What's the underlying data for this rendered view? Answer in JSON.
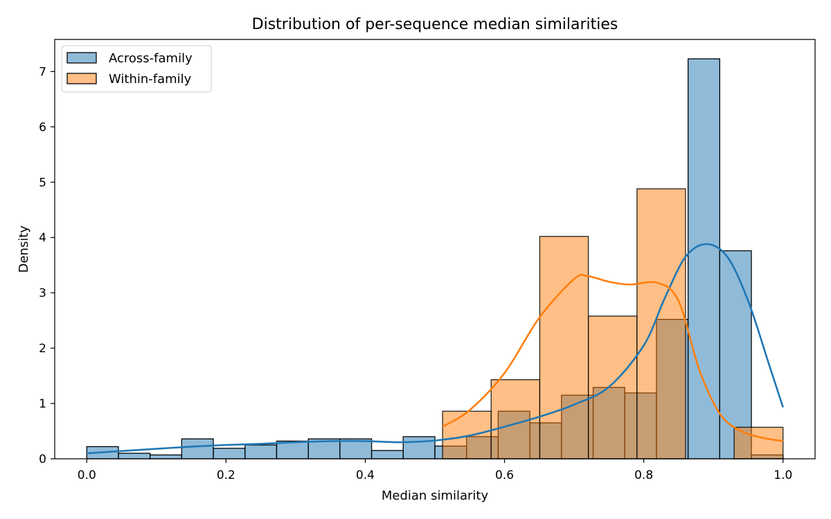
{
  "chart_data": {
    "type": "histogram",
    "title": "Distribution of per-sequence median similarities",
    "xlabel": "Median similarity",
    "ylabel": "Density",
    "xlim": [
      -0.046,
      1.046
    ],
    "ylim": [
      0,
      7.58
    ],
    "xticks": [
      0.0,
      0.2,
      0.4,
      0.6,
      0.8,
      1.0
    ],
    "xtick_labels": [
      "0.0",
      "0.2",
      "0.4",
      "0.6",
      "0.8",
      "1.0"
    ],
    "yticks": [
      0,
      1,
      2,
      3,
      4,
      5,
      6,
      7
    ],
    "ytick_labels": [
      "0",
      "1",
      "2",
      "3",
      "4",
      "5",
      "6",
      "7"
    ],
    "grid": false,
    "legend_position": "upper-left",
    "series": [
      {
        "name": "Across-family",
        "color": "#1f77b4",
        "fill": "#8fb9db",
        "bin_edges": [
          0.0,
          0.0455,
          0.0909,
          0.1364,
          0.1818,
          0.2273,
          0.2727,
          0.3182,
          0.3636,
          0.4091,
          0.4545,
          0.5,
          0.5455,
          0.5909,
          0.6364,
          0.6818,
          0.7273,
          0.7727,
          0.8182,
          0.8636,
          0.9091,
          0.9545,
          1.0
        ],
        "values": [
          0.22,
          0.1,
          0.07,
          0.36,
          0.19,
          0.25,
          0.32,
          0.36,
          0.36,
          0.15,
          0.4,
          0.23,
          0.4,
          0.86,
          0.65,
          1.15,
          1.29,
          1.19,
          2.52,
          7.23,
          3.76,
          0.07
        ],
        "kde": {
          "x": [
            0.0,
            0.05,
            0.1,
            0.15,
            0.2,
            0.25,
            0.3,
            0.35,
            0.4,
            0.45,
            0.5,
            0.55,
            0.6,
            0.65,
            0.7,
            0.75,
            0.8,
            0.83,
            0.86,
            0.89,
            0.92,
            0.95,
            0.98,
            1.0
          ],
          "y": [
            0.1,
            0.14,
            0.18,
            0.22,
            0.25,
            0.27,
            0.3,
            0.32,
            0.32,
            0.3,
            0.33,
            0.42,
            0.58,
            0.76,
            0.98,
            1.3,
            2.05,
            2.9,
            3.65,
            3.88,
            3.65,
            2.85,
            1.7,
            0.93
          ]
        }
      },
      {
        "name": "Within-family",
        "color": "#ff7f0e",
        "fill": "#ffbf86",
        "bin_edges": [
          0.511,
          0.5808,
          0.6506,
          0.7204,
          0.7902,
          0.86,
          0.9298,
          1.0
        ],
        "values": [
          0.86,
          1.43,
          4.02,
          2.58,
          4.88,
          0.0,
          0.57
        ],
        "kde": {
          "x": [
            0.511,
            0.55,
            0.6,
            0.65,
            0.7,
            0.72,
            0.75,
            0.78,
            0.82,
            0.85,
            0.88,
            0.91,
            0.94,
            0.97,
            1.0
          ],
          "y": [
            0.58,
            0.88,
            1.55,
            2.55,
            3.25,
            3.3,
            3.2,
            3.15,
            3.18,
            2.85,
            1.6,
            0.8,
            0.5,
            0.38,
            0.32
          ]
        }
      }
    ]
  }
}
